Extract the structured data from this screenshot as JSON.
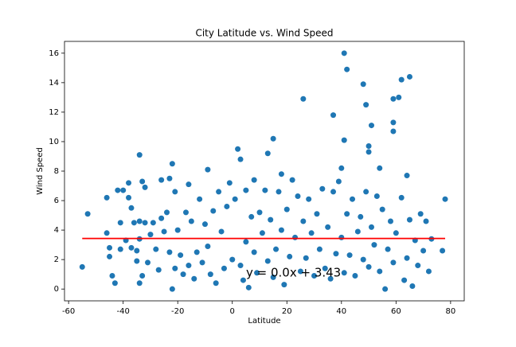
{
  "chart_data": {
    "type": "scatter",
    "title": "City Latitude vs. Wind Speed",
    "x_label": "Latitude",
    "y_label": "Wind Speed",
    "annotation": "y = 0.0x + 3.43",
    "annotation_color": "#ff0000",
    "xlim": [
      -61.5,
      85
    ],
    "ylim": [
      -0.8,
      16.8
    ],
    "xticks": [
      -60,
      -40,
      -20,
      0,
      20,
      40,
      60,
      80
    ],
    "yticks": [
      0,
      2,
      4,
      6,
      8,
      10,
      12,
      14,
      16
    ],
    "series": [
      {
        "color": "#1f77b4",
        "x": [
          -55,
          -53,
          -46,
          -46,
          -45,
          -45,
          -44,
          -43,
          -42,
          -41,
          -41,
          -40,
          -39,
          -38,
          -38,
          -37,
          -37,
          -36,
          -35,
          -35,
          -34,
          -34,
          -34,
          -34,
          -33,
          -33,
          -32,
          -32,
          -31,
          -30,
          -29,
          -28,
          -27,
          -26,
          -26,
          -25,
          -24,
          -23,
          -23,
          -22,
          -22,
          -21,
          -21,
          -20,
          -19,
          -18,
          -17,
          -16,
          -16,
          -15,
          -14,
          -13,
          -12,
          -11,
          -10,
          -9,
          -9,
          -8,
          -7,
          -6,
          -5,
          -4,
          -3,
          -2,
          -1,
          0,
          1,
          2,
          3,
          3,
          4,
          5,
          5,
          6,
          7,
          8,
          8,
          9,
          10,
          11,
          12,
          13,
          13,
          14,
          15,
          15,
          16,
          17,
          18,
          18,
          19,
          20,
          21,
          22,
          23,
          24,
          25,
          26,
          26,
          27,
          28,
          29,
          30,
          31,
          32,
          33,
          34,
          35,
          36,
          37,
          37,
          38,
          39,
          40,
          40,
          41,
          41,
          41,
          42,
          42,
          43,
          44,
          45,
          46,
          47,
          48,
          48,
          49,
          49,
          50,
          50,
          50,
          51,
          51,
          52,
          53,
          54,
          54,
          55,
          56,
          57,
          58,
          59,
          59,
          59,
          59,
          60,
          61,
          62,
          62,
          63,
          64,
          64,
          65,
          65,
          66,
          67,
          68,
          69,
          70,
          71,
          72,
          73,
          77,
          78
        ],
        "values": [
          1.5,
          5.1,
          6.2,
          3.8,
          2.8,
          2.2,
          0.9,
          0.4,
          6.7,
          4.5,
          2.7,
          6.7,
          3.3,
          7.2,
          6.2,
          5.5,
          2.8,
          4.5,
          2.6,
          1.9,
          9.1,
          4.6,
          3.4,
          0.4,
          7.3,
          0.9,
          6.9,
          4.5,
          1.8,
          3.7,
          4.5,
          2.7,
          1.3,
          7.4,
          4.8,
          3.9,
          5.2,
          7.5,
          2.5,
          8.5,
          0.0,
          6.6,
          1.4,
          4.0,
          2.3,
          1.0,
          5.2,
          7.1,
          1.6,
          4.6,
          0.7,
          2.5,
          6.1,
          1.8,
          4.4,
          8.1,
          2.9,
          1.0,
          5.3,
          0.4,
          6.6,
          3.9,
          1.4,
          5.6,
          7.2,
          2.0,
          6.1,
          9.5,
          8.8,
          1.6,
          0.6,
          6.7,
          3.2,
          0.1,
          4.9,
          7.4,
          2.5,
          1.1,
          5.2,
          3.8,
          6.7,
          9.2,
          1.9,
          4.7,
          10.2,
          0.8,
          2.7,
          6.6,
          7.8,
          4.0,
          0.3,
          5.4,
          2.2,
          7.4,
          3.5,
          6.3,
          1.2,
          12.9,
          4.6,
          2.1,
          6.1,
          3.8,
          0.9,
          5.1,
          2.7,
          6.8,
          1.4,
          4.2,
          0.7,
          11.8,
          6.6,
          2.4,
          7.3,
          8.2,
          3.5,
          16.0,
          10.1,
          1.1,
          14.9,
          5.1,
          2.3,
          6.1,
          0.9,
          3.9,
          4.9,
          13.9,
          2.0,
          12.5,
          6.6,
          9.7,
          9.3,
          1.5,
          11.1,
          4.2,
          3.0,
          6.3,
          8.2,
          1.2,
          5.4,
          0.0,
          2.7,
          4.6,
          12.9,
          11.3,
          10.7,
          1.8,
          3.8,
          13.0,
          14.2,
          6.2,
          0.6,
          7.7,
          2.1,
          14.4,
          4.7,
          0.2,
          3.3,
          1.6,
          5.1,
          2.6,
          4.6,
          1.2,
          3.4,
          2.6,
          6.1
        ]
      },
      {
        "color": "#ff0000",
        "x": [
          -55,
          78
        ],
        "values": [
          3.43,
          3.43
        ]
      }
    ]
  }
}
